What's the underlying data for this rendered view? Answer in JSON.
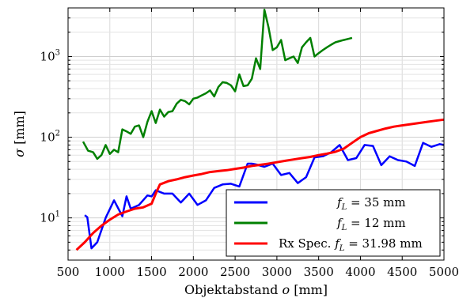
{
  "chart_data": {
    "type": "line",
    "xlabel": "Objektabstand o [mm]",
    "ylabel": "σ [mm]",
    "x_scale": "linear",
    "y_scale": "log",
    "xlim": [
      500,
      5000
    ],
    "ylim": [
      3,
      4000
    ],
    "grid": true,
    "legend_position": "bottom-right",
    "xticks": [
      "500",
      "1000",
      "1500",
      "2000",
      "2500",
      "3000",
      "3500",
      "4000",
      "4500",
      "5000"
    ],
    "yticks": [
      {
        "value": 10,
        "base": "10",
        "exp": "1"
      },
      {
        "value": 100,
        "base": "10",
        "exp": "2"
      },
      {
        "value": 1000,
        "base": "10",
        "exp": "3"
      }
    ],
    "series": [
      {
        "name": "f_L = 35 mm",
        "legend_label": "= 35 mm",
        "color": "#0000ff",
        "x": [
          700,
          730,
          780,
          850,
          950,
          1050,
          1150,
          1200,
          1250,
          1350,
          1450,
          1500,
          1550,
          1650,
          1750,
          1850,
          1950,
          2050,
          2150,
          2250,
          2350,
          2450,
          2550,
          2650,
          2700,
          2750,
          2850,
          2950,
          3050,
          3150,
          3250,
          3350,
          3450,
          3550,
          3650,
          3750,
          3850,
          3950,
          4050,
          4150,
          4250,
          4350,
          4450,
          4550,
          4650,
          4750,
          4850,
          4950,
          5000
        ],
        "y": [
          10.8,
          10.2,
          4.2,
          5.0,
          10.0,
          16.5,
          10.5,
          18.5,
          13.0,
          14.5,
          19.0,
          18.5,
          22.0,
          20.0,
          20.0,
          15.5,
          20.0,
          14.5,
          16.5,
          23.5,
          26.0,
          26.5,
          24.5,
          47.0,
          47.0,
          46.0,
          43.0,
          47.0,
          34.0,
          36.0,
          27.0,
          32.0,
          56.0,
          58.0,
          65.0,
          80.0,
          52.0,
          55.0,
          80.0,
          78.0,
          45.0,
          58.0,
          52.0,
          50.0,
          44.0,
          85.0,
          76.0,
          82.0,
          80.0
        ]
      },
      {
        "name": "f_L = 12 mm",
        "legend_label": "= 12 mm",
        "color": "#008000",
        "x": [
          680,
          740,
          800,
          850,
          900,
          950,
          1000,
          1050,
          1100,
          1150,
          1200,
          1250,
          1300,
          1350,
          1400,
          1450,
          1500,
          1550,
          1600,
          1650,
          1700,
          1750,
          1800,
          1850,
          1900,
          1950,
          2000,
          2050,
          2100,
          2150,
          2200,
          2250,
          2300,
          2350,
          2400,
          2450,
          2500,
          2550,
          2600,
          2650,
          2700,
          2750,
          2800,
          2850,
          2900,
          2950,
          3000,
          3050,
          3100,
          3150,
          3200,
          3250,
          3300,
          3350,
          3400,
          3450,
          3500,
          3550,
          3600,
          3650,
          3700,
          3750,
          3800,
          3850,
          3900
        ],
        "y": [
          88,
          68,
          65,
          54,
          60,
          80,
          62,
          70,
          65,
          125,
          118,
          110,
          135,
          140,
          100,
          155,
          210,
          150,
          220,
          180,
          205,
          210,
          260,
          290,
          280,
          255,
          300,
          310,
          330,
          350,
          380,
          320,
          420,
          480,
          470,
          440,
          370,
          600,
          430,
          440,
          530,
          950,
          700,
          3800,
          2300,
          1200,
          1300,
          1600,
          900,
          950,
          1000,
          830,
          1300,
          1500,
          1700,
          1000,
          1100,
          1200,
          1300,
          1400,
          1500,
          1550,
          1600,
          1650,
          1700
        ]
      },
      {
        "name": "Rx Spec. f_L = 31.98 mm",
        "legend_label": "Rx Spec.",
        "legend_suffix": "= 31.98 mm",
        "color": "#ff0000",
        "x": [
          600,
          700,
          800,
          900,
          1000,
          1100,
          1200,
          1300,
          1400,
          1500,
          1550,
          1600,
          1700,
          1800,
          1900,
          2000,
          2100,
          2200,
          2300,
          2400,
          2500,
          2600,
          2700,
          2800,
          2900,
          3000,
          3100,
          3200,
          3300,
          3400,
          3500,
          3600,
          3700,
          3800,
          3900,
          4000,
          4100,
          4200,
          4300,
          4400,
          4500,
          4600,
          4700,
          4800,
          4900,
          5000
        ],
        "y": [
          4.0,
          5.0,
          6.5,
          8.0,
          9.5,
          11.0,
          12.0,
          13.0,
          13.5,
          15.0,
          20.0,
          26.0,
          28.5,
          30.0,
          32.0,
          33.5,
          35.0,
          37.0,
          38.0,
          39.0,
          40.5,
          42.0,
          44.0,
          45.5,
          47.0,
          49.0,
          51.0,
          53.0,
          55.0,
          57.0,
          60.0,
          62.5,
          66.0,
          72.0,
          85.0,
          100.0,
          112.0,
          120.0,
          128.0,
          135.0,
          140.0,
          145.0,
          150.0,
          155.0,
          160.0,
          165.0
        ]
      }
    ]
  }
}
